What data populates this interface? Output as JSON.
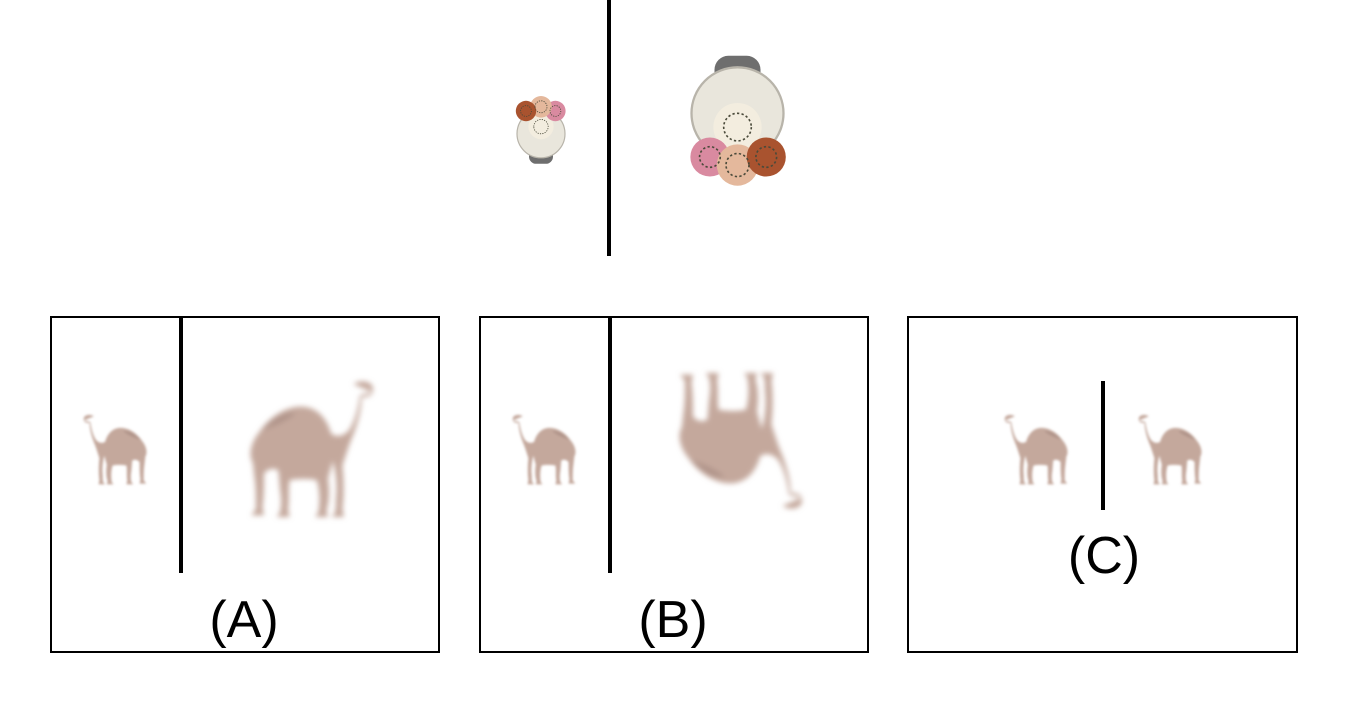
{
  "options": [
    {
      "label": "(A)"
    },
    {
      "label": "(B)"
    },
    {
      "label": "(C)"
    }
  ],
  "colors": {
    "camel": "#c4a89c",
    "camel_shadow": "#a88c80",
    "vase_base": "#6e6e6e",
    "vase_body": "#e9e6dc",
    "flower_pink": "#d98aa0",
    "flower_peach": "#e4b89c",
    "flower_rust": "#a9532f",
    "flower_cream": "#f3eddf"
  },
  "icons": {
    "reference_small": "flower-vase-top-view-icon",
    "reference_large": "flower-vase-top-view-icon",
    "option_object": "camel-icon"
  }
}
